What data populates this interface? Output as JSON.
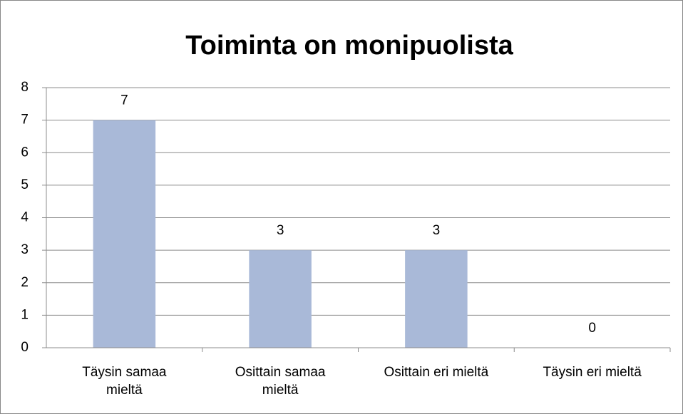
{
  "chart_data": {
    "type": "bar",
    "title": "Toiminta on monipuolista",
    "categories": [
      "Täysin samaa mieltä",
      "Osittain samaa mieltä",
      "Osittain eri mieltä",
      "Täysin eri mieltä"
    ],
    "values": [
      7,
      3,
      3,
      0
    ],
    "color": "#a9b9d8",
    "ylim": [
      0,
      8
    ],
    "yticks": [
      0,
      1,
      2,
      3,
      4,
      5,
      6,
      7,
      8
    ],
    "grid": true
  }
}
